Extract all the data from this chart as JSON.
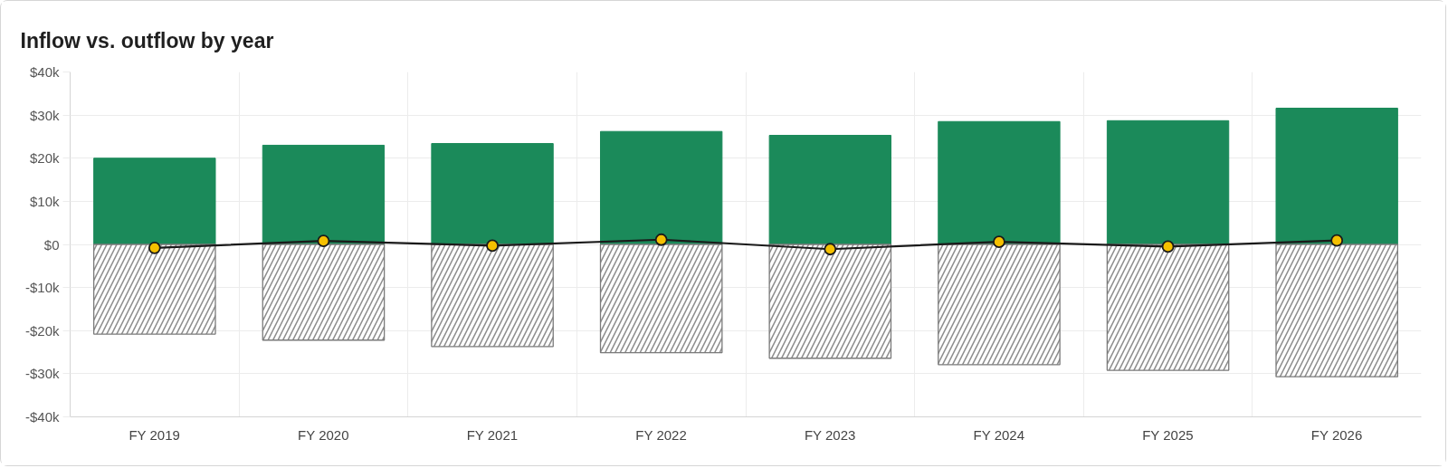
{
  "chart_data": {
    "type": "bar",
    "title": "Inflow vs. outflow by year",
    "stacked": true,
    "categories": [
      "FY 2019",
      "FY 2020",
      "FY 2021",
      "FY 2022",
      "FY 2023",
      "FY 2024",
      "FY 2025",
      "FY 2026"
    ],
    "series": [
      {
        "color": "#1b8a5a",
        "values": [
          20000,
          23000,
          23400,
          26200,
          25300,
          28500,
          28700,
          31600
        ]
      },
      {
        "color": "#7a7a7a",
        "values": [
          -20800,
          -22200,
          -23700,
          -25100,
          -26400,
          -27900,
          -29200,
          -30700
        ]
      },
      {
        "type": "line",
        "color": "#1a1a1a",
        "colors": [
          "#f5c000",
          "#f5c000",
          "#f5c000",
          "#f5c000",
          "#f5c000",
          "#f5c000",
          "#f5c000",
          "#f5c000"
        ],
        "values": [
          -800,
          800,
          -300,
          1100,
          -1100,
          600,
          -500,
          900
        ]
      }
    ],
    "ylim": [
      -40000,
      40000
    ],
    "yticks": [
      {
        "value": -40000,
        "label": "-$40k"
      },
      {
        "value": -30000,
        "label": "-$30k"
      },
      {
        "value": -20000,
        "label": "-$20k"
      },
      {
        "value": -10000,
        "label": "-$10k"
      },
      {
        "value": 0,
        "label": "$0"
      },
      {
        "value": 10000,
        "label": "$10k"
      },
      {
        "value": 20000,
        "label": "$20k"
      },
      {
        "value": 30000,
        "label": "$30k"
      },
      {
        "value": 40000,
        "label": "$40k"
      }
    ],
    "grid": true,
    "marker": "circle",
    "line_style": "solid"
  }
}
